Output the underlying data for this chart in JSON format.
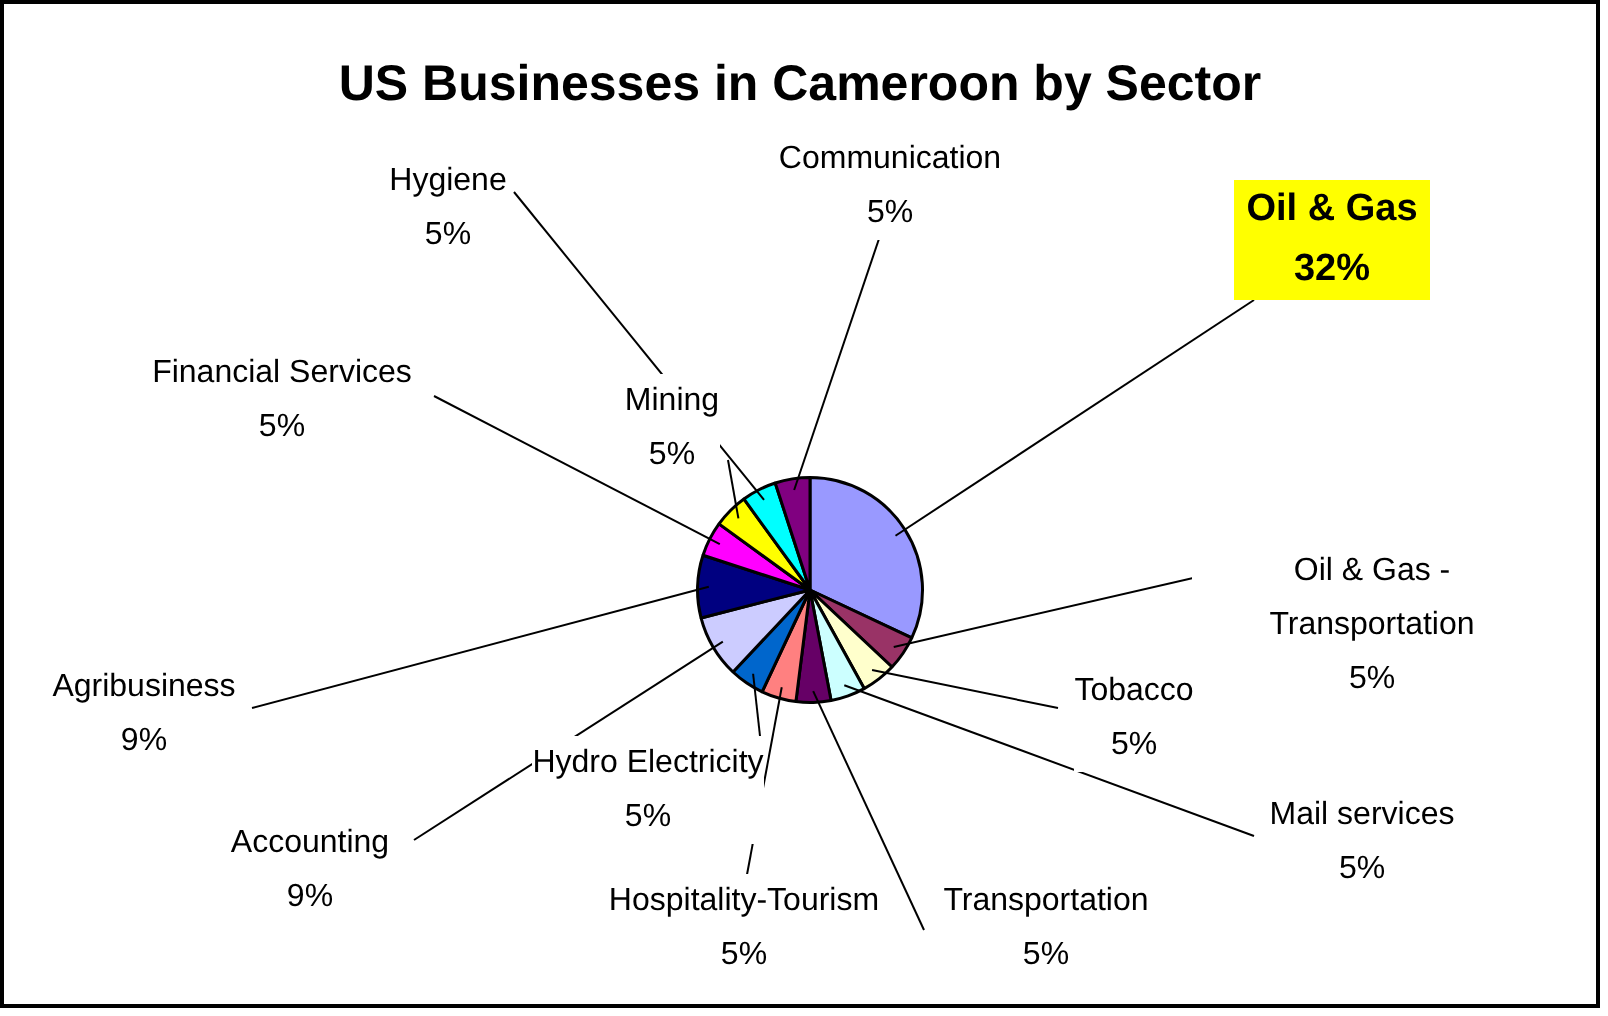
{
  "chart_data": {
    "type": "pie",
    "title": "US Businesses in Cameroon by Sector",
    "categories": [
      "Oil & Gas",
      "Oil & Gas - Transportation",
      "Tobacco",
      "Mail services",
      "Transportation",
      "Hospitality-Tourism",
      "Hydro Electricity",
      "Accounting",
      "Agribusiness",
      "Financial Services",
      "Mining",
      "Hygiene",
      "Communication"
    ],
    "values": [
      32,
      5,
      5,
      5,
      5,
      5,
      5,
      9,
      9,
      5,
      5,
      5,
      5
    ],
    "value_labels": [
      "32%",
      "5%",
      "5%",
      "5%",
      "5%",
      "5%",
      "5%",
      "9%",
      "9%",
      "5%",
      "5%",
      "5%",
      "5%"
    ],
    "colors": [
      "#9999ff",
      "#993366",
      "#ffffcc",
      "#ccffff",
      "#660066",
      "#ff8080",
      "#0066cc",
      "#ccccff",
      "#000080",
      "#ff00ff",
      "#ffff00",
      "#00ffff",
      "#800080"
    ],
    "legend": false
  }
}
